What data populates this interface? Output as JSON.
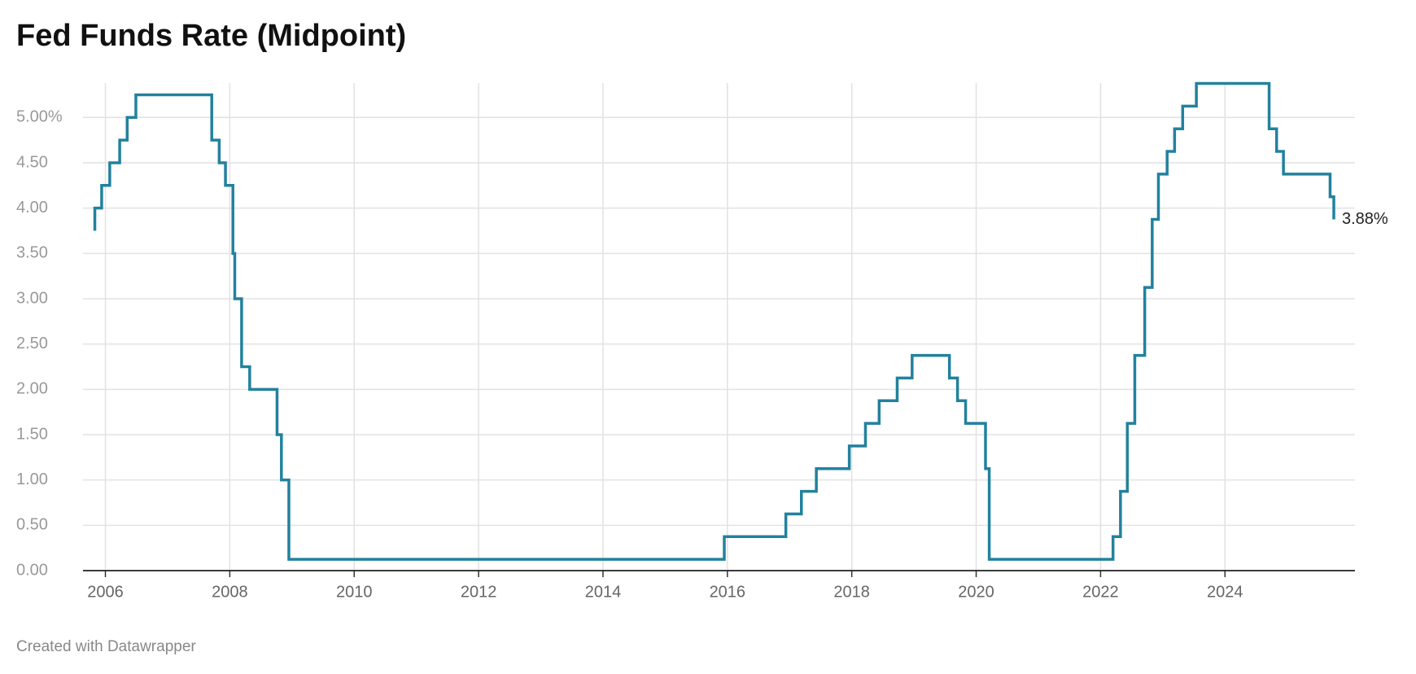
{
  "chart_data": {
    "type": "step-line",
    "title": "Fed Funds Rate (Midpoint)",
    "footer": "Created with Datawrapper",
    "color": "#22819e",
    "grid": true,
    "x": [
      2005.83,
      2005.83,
      2005.94,
      2005.94,
      2006.07,
      2006.07,
      2006.23,
      2006.23,
      2006.35,
      2006.35,
      2006.49,
      2006.49,
      2007.71,
      2007.71,
      2007.83,
      2007.83,
      2007.93,
      2007.93,
      2008.05,
      2008.05,
      2008.08,
      2008.08,
      2008.19,
      2008.19,
      2008.32,
      2008.32,
      2008.76,
      2008.76,
      2008.83,
      2008.83,
      2008.95,
      2008.95,
      2015.95,
      2015.95,
      2016.94,
      2016.94,
      2017.19,
      2017.19,
      2017.43,
      2017.43,
      2017.96,
      2017.96,
      2018.22,
      2018.22,
      2018.44,
      2018.44,
      2018.73,
      2018.73,
      2018.97,
      2018.97,
      2019.57,
      2019.57,
      2019.7,
      2019.7,
      2019.83,
      2019.83,
      2020.15,
      2020.15,
      2020.21,
      2020.21,
      2022.2,
      2022.2,
      2022.32,
      2022.32,
      2022.43,
      2022.43,
      2022.55,
      2022.55,
      2022.71,
      2022.71,
      2022.83,
      2022.83,
      2022.93,
      2022.93,
      2023.07,
      2023.07,
      2023.19,
      2023.19,
      2023.32,
      2023.32,
      2023.54,
      2023.54,
      2024.71,
      2024.71,
      2024.83,
      2024.83,
      2024.94,
      2024.94,
      2025.69,
      2025.69,
      2025.75,
      2025.75
    ],
    "values": [
      3.75,
      4,
      4,
      4.25,
      4.25,
      4.5,
      4.5,
      4.75,
      4.75,
      5,
      5,
      5.25,
      5.25,
      4.75,
      4.75,
      4.5,
      4.5,
      4.25,
      4.25,
      3.5,
      3.5,
      3,
      3,
      2.25,
      2.25,
      2,
      2,
      1.5,
      1.5,
      1,
      1,
      0.125,
      0.125,
      0.375,
      0.375,
      0.625,
      0.625,
      0.875,
      0.875,
      1.125,
      1.125,
      1.375,
      1.375,
      1.625,
      1.625,
      1.875,
      1.875,
      2.125,
      2.125,
      2.375,
      2.375,
      2.125,
      2.125,
      1.875,
      1.875,
      1.625,
      1.625,
      1.125,
      1.125,
      0.125,
      0.125,
      0.375,
      0.375,
      0.875,
      0.875,
      1.625,
      1.625,
      2.375,
      2.375,
      3.125,
      3.125,
      3.875,
      3.875,
      4.375,
      4.375,
      4.625,
      4.625,
      4.875,
      4.875,
      5.125,
      5.125,
      5.375,
      5.375,
      4.875,
      4.875,
      4.625,
      4.625,
      4.375,
      4.375,
      4.125,
      4.125,
      3.875
    ],
    "annotations": [
      {
        "text": "3.88%",
        "x": 2025.75,
        "y": 3.875
      }
    ],
    "xlim": [
      2005.64,
      2026.09
    ],
    "xticks": [
      2006,
      2008,
      2010,
      2012,
      2014,
      2016,
      2018,
      2020,
      2022,
      2024
    ],
    "ylim": [
      0,
      5.38
    ],
    "yticks": [
      {
        "value": 0,
        "label": "0.00"
      },
      {
        "value": 0.5,
        "label": "0.50"
      },
      {
        "value": 1,
        "label": "1.00"
      },
      {
        "value": 1.5,
        "label": "1.50"
      },
      {
        "value": 2,
        "label": "2.00"
      },
      {
        "value": 2.5,
        "label": "2.50"
      },
      {
        "value": 3,
        "label": "3.00"
      },
      {
        "value": 3.5,
        "label": "3.50"
      },
      {
        "value": 4,
        "label": "4.00"
      },
      {
        "value": 4.5,
        "label": "4.50"
      },
      {
        "value": 5,
        "label": "5.00%"
      }
    ]
  }
}
